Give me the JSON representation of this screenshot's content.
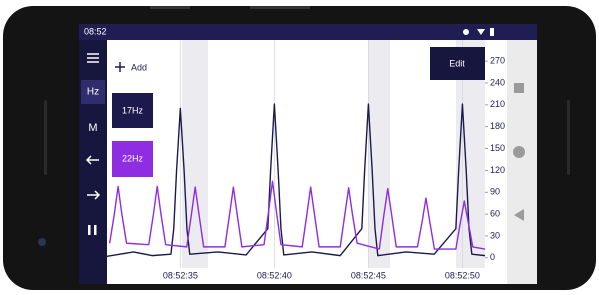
{
  "status_bar": {
    "time": "08:52"
  },
  "sidebar": {
    "items": [
      "Hz",
      "M"
    ]
  },
  "buttons": {
    "add": "Add",
    "edit": "Edit"
  },
  "chart_data": {
    "type": "line",
    "grid": true,
    "xlim": [
      31.1,
      51.2
    ],
    "xticks": [
      {
        "value": 35,
        "label": "08:52:35"
      },
      {
        "value": 40,
        "label": "08:52:40"
      },
      {
        "value": 45,
        "label": "08:52:45"
      },
      {
        "value": 50,
        "label": "08:52:50"
      }
    ],
    "ylim": [
      -14,
      299
    ],
    "yticks": [
      0,
      30,
      60,
      90,
      120,
      150,
      180,
      210,
      240,
      270
    ],
    "series": [
      {
        "name": "17Hz",
        "color": "#1c1a4d",
        "x": [
          31.1,
          32.5,
          33.5,
          34.5,
          34.65,
          34.8,
          35.0,
          35.2,
          35.35,
          35.5,
          37,
          38.5,
          39.65,
          39.8,
          40.0,
          40.2,
          40.35,
          40.5,
          42,
          43.5,
          44.65,
          44.8,
          45.0,
          45.2,
          45.35,
          45.5,
          47,
          48.5,
          49.65,
          49.8,
          50.0,
          50.2,
          50.35,
          50.5,
          51.2
        ],
        "values": [
          2,
          8,
          3,
          5,
          40,
          120,
          205,
          120,
          40,
          5,
          8,
          4,
          40,
          120,
          211,
          120,
          40,
          4,
          8,
          3,
          40,
          120,
          211,
          120,
          40,
          3,
          8,
          5,
          40,
          120,
          211,
          120,
          40,
          5,
          3
        ]
      },
      {
        "name": "22Hz",
        "color": "#8e2de2",
        "x": [
          31.24,
          31.49,
          31.69,
          31.89,
          32.14,
          33.32,
          33.57,
          33.77,
          33.97,
          34.22,
          35.34,
          35.59,
          35.79,
          35.99,
          36.24,
          37.37,
          37.62,
          37.82,
          38.02,
          38.27,
          39.45,
          39.7,
          39.9,
          40.1,
          40.35,
          41.48,
          41.73,
          41.93,
          42.13,
          42.38,
          43.5,
          43.75,
          43.95,
          44.15,
          44.4,
          45.58,
          45.83,
          46.03,
          46.23,
          46.48,
          47.61,
          47.86,
          48.06,
          48.26,
          48.51,
          49.65,
          49.9,
          50.1,
          50.3,
          50.55,
          51.2
        ],
        "values": [
          20,
          60,
          98,
          60,
          20,
          18,
          60,
          98,
          60,
          18,
          15,
          60,
          97,
          60,
          15,
          15,
          60,
          97,
          60,
          15,
          18,
          65,
          105,
          65,
          18,
          15,
          60,
          97,
          60,
          15,
          15,
          60,
          96,
          60,
          20,
          12,
          60,
          95,
          60,
          15,
          15,
          50,
          82,
          50,
          12,
          12,
          50,
          78,
          50,
          15,
          12
        ]
      }
    ]
  }
}
